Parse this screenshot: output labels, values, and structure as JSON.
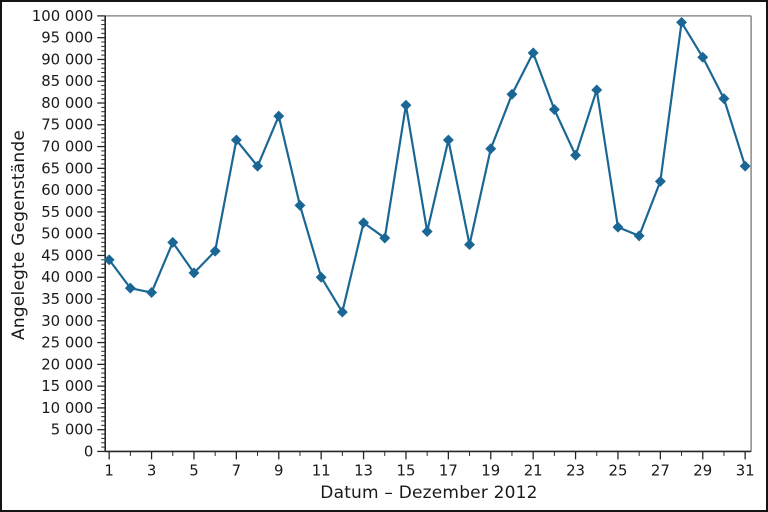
{
  "figure": {
    "background": "#ffffff",
    "frame_color": "#141414"
  },
  "chart_data": {
    "type": "line",
    "title": "",
    "xlabel": "Datum – Dezember 2012",
    "ylabel": "Angelegte Gegenstände",
    "x": [
      1,
      2,
      3,
      4,
      5,
      6,
      7,
      8,
      9,
      10,
      11,
      12,
      13,
      14,
      15,
      16,
      17,
      18,
      19,
      20,
      21,
      22,
      23,
      24,
      25,
      26,
      27,
      28,
      29,
      30,
      31
    ],
    "values": [
      44000,
      37500,
      36500,
      48000,
      41000,
      46000,
      71500,
      65500,
      77000,
      56500,
      40000,
      32000,
      52500,
      49000,
      79500,
      50500,
      71500,
      47500,
      69500,
      82000,
      91500,
      78500,
      68000,
      83000,
      51500,
      49500,
      62000,
      98500,
      90500,
      81000,
      65500
    ],
    "xlim": [
      1,
      31
    ],
    "ylim": [
      0,
      100000
    ],
    "y_major_step": 5000,
    "y_minor_step": 1000,
    "x_tick_values": [
      1,
      3,
      5,
      7,
      9,
      11,
      13,
      15,
      17,
      19,
      21,
      23,
      25,
      27,
      29,
      31
    ],
    "x_tick_labels": [
      "1",
      "3",
      "5",
      "7",
      "9",
      "11",
      "13",
      "15",
      "17",
      "19",
      "21",
      "23",
      "25",
      "27",
      "29",
      "31"
    ],
    "x_minor_tick_values": [
      2,
      4,
      6,
      8,
      10,
      12,
      14,
      16,
      18,
      20,
      22,
      24,
      26,
      28,
      30
    ],
    "y_tick_labels": [
      "0",
      "5 000",
      "10 000",
      "15 000",
      "20 000",
      "25 000",
      "30 000",
      "35 000",
      "40 000",
      "45 000",
      "50 000",
      "55 000",
      "60 000",
      "65 000",
      "70 000",
      "75 000",
      "80 000",
      "85 000",
      "90 000",
      "95 000",
      "100 000"
    ],
    "grid": false,
    "legend": "none",
    "marker": "diamond",
    "line_color": "#1a6795",
    "axis_color": "#262626",
    "plot_border_color": "#8f8f8f",
    "text_color": "#1a1a1a"
  }
}
